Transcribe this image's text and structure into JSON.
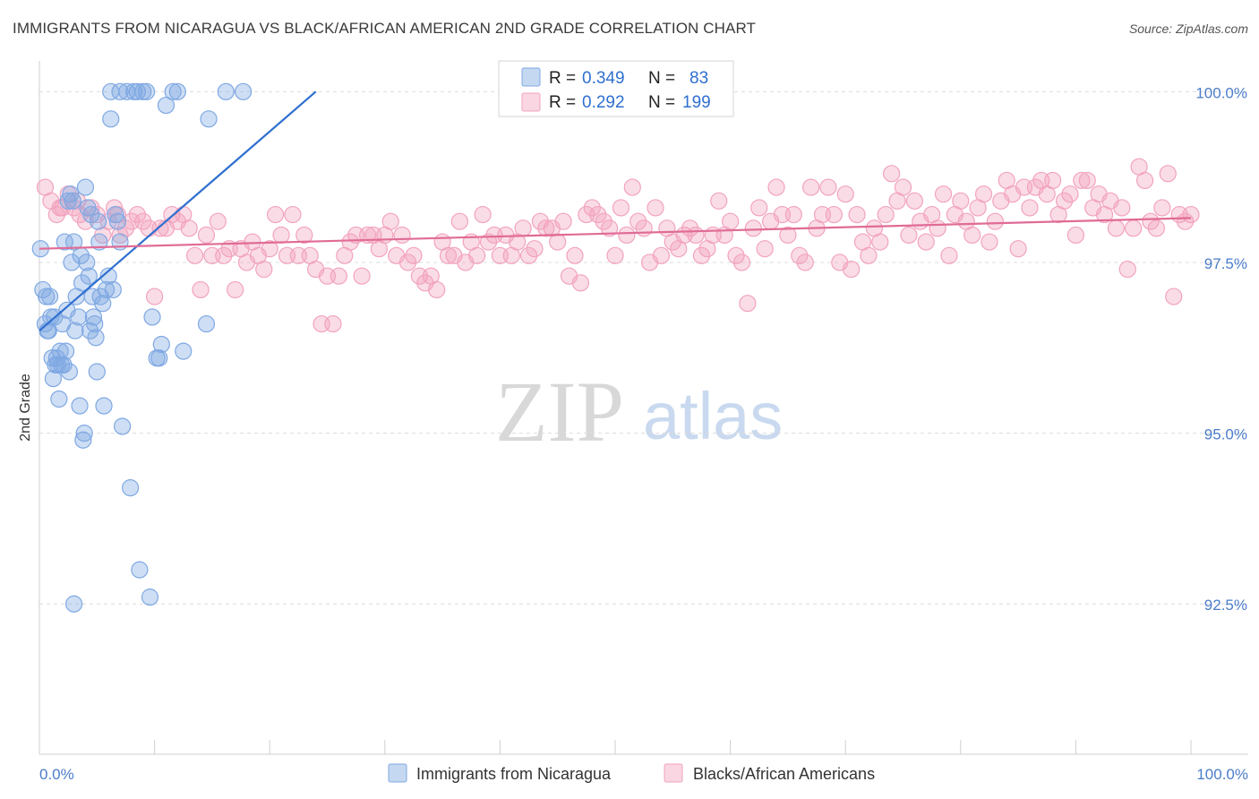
{
  "header": {
    "title": "IMMIGRANTS FROM NICARAGUA VS BLACK/AFRICAN AMERICAN 2ND GRADE CORRELATION CHART",
    "source": "Source: ZipAtlas.com"
  },
  "watermark": {
    "zip": "ZIP",
    "atlas": "atlas"
  },
  "chart_data": {
    "type": "scatter",
    "title": "IMMIGRANTS FROM NICARAGUA VS BLACK/AFRICAN AMERICAN 2ND GRADE CORRELATION CHART",
    "xlabel": "",
    "ylabel": "2nd Grade",
    "xlim": [
      0,
      100
    ],
    "ylim": [
      90.3,
      100.45
    ],
    "x_tick_labels": {
      "left": "0.0%",
      "right": "100.0%"
    },
    "y_ticks": [
      {
        "value": 100.0,
        "label": "100.0%"
      },
      {
        "value": 97.5,
        "label": "97.5%"
      },
      {
        "value": 95.0,
        "label": "95.0%"
      },
      {
        "value": 92.5,
        "label": "92.5%"
      }
    ],
    "legend": {
      "placement": "top-center",
      "rows": [
        {
          "r_label": "R = ",
          "r_value": "0.349",
          "n_label": "N = ",
          "n_value": "83"
        },
        {
          "r_label": "R = ",
          "r_value": "0.292",
          "n_label": "N = ",
          "n_value": "199"
        }
      ]
    },
    "series": [
      {
        "name": "Immigrants from Nicaragua",
        "color": "#7fa8e3",
        "line_color": "#2f6fd0",
        "trend": {
          "x0": 0,
          "y0": 96.5,
          "x1": 24,
          "y1": 100.0
        },
        "points": [
          [
            0.1,
            97.7
          ],
          [
            0.3,
            97.1
          ],
          [
            0.5,
            96.6
          ],
          [
            0.6,
            97.0
          ],
          [
            0.7,
            96.5
          ],
          [
            0.8,
            96.5
          ],
          [
            0.9,
            97.0
          ],
          [
            1.0,
            96.7
          ],
          [
            1.1,
            96.1
          ],
          [
            1.2,
            95.8
          ],
          [
            1.3,
            96.7
          ],
          [
            1.4,
            96.0
          ],
          [
            1.5,
            96.1
          ],
          [
            1.6,
            96.0
          ],
          [
            1.7,
            95.5
          ],
          [
            1.8,
            96.2
          ],
          [
            1.9,
            96.0
          ],
          [
            2.0,
            96.6
          ],
          [
            2.1,
            96.0
          ],
          [
            2.2,
            97.8
          ],
          [
            2.3,
            96.2
          ],
          [
            2.4,
            96.8
          ],
          [
            2.5,
            98.4
          ],
          [
            2.6,
            95.9
          ],
          [
            2.7,
            98.5
          ],
          [
            2.8,
            97.5
          ],
          [
            2.9,
            98.4
          ],
          [
            3.0,
            97.8
          ],
          [
            3.1,
            96.5
          ],
          [
            3.2,
            97.0
          ],
          [
            3.4,
            96.7
          ],
          [
            3.5,
            95.4
          ],
          [
            3.6,
            97.6
          ],
          [
            3.7,
            97.2
          ],
          [
            3.8,
            94.9
          ],
          [
            3.9,
            95.0
          ],
          [
            4.0,
            98.6
          ],
          [
            4.1,
            97.5
          ],
          [
            4.2,
            98.3
          ],
          [
            4.3,
            97.3
          ],
          [
            4.4,
            96.5
          ],
          [
            4.5,
            98.2
          ],
          [
            4.6,
            97.0
          ],
          [
            4.7,
            96.7
          ],
          [
            4.8,
            96.6
          ],
          [
            4.9,
            96.4
          ],
          [
            5.0,
            95.9
          ],
          [
            5.1,
            98.1
          ],
          [
            5.2,
            97.8
          ],
          [
            5.3,
            97.0
          ],
          [
            5.5,
            96.9
          ],
          [
            5.6,
            95.4
          ],
          [
            5.8,
            97.1
          ],
          [
            6.0,
            97.3
          ],
          [
            6.2,
            99.6
          ],
          [
            6.4,
            97.1
          ],
          [
            6.6,
            98.2
          ],
          [
            6.8,
            98.1
          ],
          [
            7.0,
            97.8
          ],
          [
            7.2,
            95.1
          ],
          [
            7.0,
            100.0
          ],
          [
            7.6,
            100.0
          ],
          [
            7.9,
            94.2
          ],
          [
            8.2,
            100.0
          ],
          [
            8.5,
            100.0
          ],
          [
            8.7,
            93.0
          ],
          [
            9.0,
            100.0
          ],
          [
            9.3,
            100.0
          ],
          [
            9.6,
            92.6
          ],
          [
            9.8,
            96.7
          ],
          [
            10.2,
            96.1
          ],
          [
            10.4,
            96.1
          ],
          [
            10.6,
            96.3
          ],
          [
            11.0,
            99.8
          ],
          [
            11.6,
            100.0
          ],
          [
            12.0,
            100.0
          ],
          [
            12.5,
            96.2
          ],
          [
            14.7,
            99.6
          ],
          [
            14.5,
            96.6
          ],
          [
            16.2,
            100.0
          ],
          [
            17.7,
            100.0
          ],
          [
            3.0,
            92.5
          ],
          [
            6.2,
            100.0
          ]
        ]
      },
      {
        "name": "Blacks/African Americans",
        "color": "#f2a3be",
        "line_color": "#e06b96",
        "trend": {
          "x0": 0,
          "y0": 97.7,
          "x1": 100,
          "y1": 98.15
        },
        "points": [
          [
            0.5,
            98.6
          ],
          [
            1.0,
            98.4
          ],
          [
            1.5,
            98.2
          ],
          [
            2.0,
            98.3
          ],
          [
            2.5,
            98.5
          ],
          [
            3.0,
            98.3
          ],
          [
            3.5,
            98.2
          ],
          [
            4.0,
            98.1
          ],
          [
            4.5,
            98.3
          ],
          [
            5.0,
            98.2
          ],
          [
            5.5,
            97.9
          ],
          [
            6.0,
            98.1
          ],
          [
            6.5,
            98.3
          ],
          [
            7.0,
            97.9
          ],
          [
            7.5,
            98.0
          ],
          [
            8.0,
            98.1
          ],
          [
            8.5,
            98.2
          ],
          [
            9.0,
            98.1
          ],
          [
            9.5,
            98.0
          ],
          [
            10.0,
            97.0
          ],
          [
            10.5,
            98.0
          ],
          [
            11.0,
            98.0
          ],
          [
            11.5,
            98.2
          ],
          [
            12.0,
            98.1
          ],
          [
            12.5,
            98.2
          ],
          [
            13.0,
            98.0
          ],
          [
            13.5,
            97.6
          ],
          [
            14.0,
            97.1
          ],
          [
            14.5,
            97.9
          ],
          [
            15.0,
            97.6
          ],
          [
            15.5,
            98.1
          ],
          [
            16.0,
            97.6
          ],
          [
            16.5,
            97.7
          ],
          [
            17.0,
            97.1
          ],
          [
            17.5,
            97.7
          ],
          [
            18.0,
            97.5
          ],
          [
            18.5,
            97.8
          ],
          [
            19.0,
            97.6
          ],
          [
            19.5,
            97.4
          ],
          [
            20.0,
            97.7
          ],
          [
            20.5,
            98.2
          ],
          [
            21.0,
            97.9
          ],
          [
            21.5,
            97.6
          ],
          [
            22.0,
            98.2
          ],
          [
            22.5,
            97.6
          ],
          [
            23.0,
            97.9
          ],
          [
            23.5,
            97.6
          ],
          [
            24.0,
            97.4
          ],
          [
            24.5,
            96.6
          ],
          [
            25.0,
            97.3
          ],
          [
            25.5,
            96.6
          ],
          [
            26.0,
            97.3
          ],
          [
            26.5,
            97.6
          ],
          [
            27.0,
            97.8
          ],
          [
            27.5,
            97.9
          ],
          [
            28.0,
            97.3
          ],
          [
            28.5,
            97.9
          ],
          [
            29.0,
            97.9
          ],
          [
            29.5,
            97.7
          ],
          [
            30.0,
            97.9
          ],
          [
            30.5,
            98.1
          ],
          [
            31.0,
            97.6
          ],
          [
            31.5,
            97.9
          ],
          [
            32.0,
            97.5
          ],
          [
            32.5,
            97.6
          ],
          [
            33.0,
            97.3
          ],
          [
            33.5,
            97.2
          ],
          [
            34.0,
            97.3
          ],
          [
            34.5,
            97.1
          ],
          [
            35.0,
            97.8
          ],
          [
            35.5,
            97.6
          ],
          [
            36.0,
            97.6
          ],
          [
            36.5,
            98.1
          ],
          [
            37.0,
            97.5
          ],
          [
            37.5,
            97.8
          ],
          [
            38.0,
            97.6
          ],
          [
            38.5,
            98.2
          ],
          [
            39.0,
            97.8
          ],
          [
            39.5,
            97.9
          ],
          [
            40.0,
            97.6
          ],
          [
            40.5,
            97.9
          ],
          [
            41.0,
            97.6
          ],
          [
            41.5,
            97.8
          ],
          [
            42.0,
            98.0
          ],
          [
            42.5,
            97.6
          ],
          [
            43.0,
            97.7
          ],
          [
            43.5,
            98.1
          ],
          [
            44.0,
            98.0
          ],
          [
            44.5,
            98.0
          ],
          [
            45.0,
            97.8
          ],
          [
            45.5,
            98.1
          ],
          [
            46.0,
            97.3
          ],
          [
            46.5,
            97.6
          ],
          [
            47.0,
            97.2
          ],
          [
            47.5,
            98.2
          ],
          [
            48.0,
            98.3
          ],
          [
            48.5,
            98.2
          ],
          [
            49.0,
            98.1
          ],
          [
            49.5,
            98.0
          ],
          [
            50.0,
            97.6
          ],
          [
            50.5,
            98.3
          ],
          [
            51.0,
            97.9
          ],
          [
            51.5,
            98.6
          ],
          [
            52.0,
            98.1
          ],
          [
            52.5,
            98.0
          ],
          [
            53.0,
            97.5
          ],
          [
            53.5,
            98.3
          ],
          [
            54.0,
            97.6
          ],
          [
            54.5,
            98.0
          ],
          [
            55.0,
            97.8
          ],
          [
            55.5,
            97.7
          ],
          [
            56.0,
            97.9
          ],
          [
            56.5,
            98.0
          ],
          [
            57.0,
            97.9
          ],
          [
            57.5,
            97.6
          ],
          [
            58.0,
            97.7
          ],
          [
            58.5,
            97.9
          ],
          [
            59.0,
            98.4
          ],
          [
            59.5,
            97.9
          ],
          [
            60.0,
            98.1
          ],
          [
            60.5,
            97.6
          ],
          [
            61.0,
            97.5
          ],
          [
            61.5,
            96.9
          ],
          [
            62.0,
            98.0
          ],
          [
            62.5,
            98.3
          ],
          [
            63.0,
            97.7
          ],
          [
            63.5,
            98.1
          ],
          [
            64.0,
            98.6
          ],
          [
            64.5,
            98.2
          ],
          [
            65.0,
            97.9
          ],
          [
            65.5,
            98.2
          ],
          [
            66.0,
            97.6
          ],
          [
            66.5,
            97.5
          ],
          [
            67.0,
            98.6
          ],
          [
            67.5,
            98.0
          ],
          [
            68.0,
            98.2
          ],
          [
            68.5,
            98.6
          ],
          [
            69.0,
            98.2
          ],
          [
            69.5,
            97.5
          ],
          [
            70.0,
            98.5
          ],
          [
            70.5,
            97.4
          ],
          [
            71.0,
            98.2
          ],
          [
            71.5,
            97.8
          ],
          [
            72.0,
            97.6
          ],
          [
            72.5,
            98.0
          ],
          [
            73.0,
            97.8
          ],
          [
            73.5,
            98.2
          ],
          [
            74.0,
            98.8
          ],
          [
            74.5,
            98.4
          ],
          [
            75.0,
            98.6
          ],
          [
            75.5,
            97.9
          ],
          [
            76.0,
            98.4
          ],
          [
            76.5,
            98.1
          ],
          [
            77.0,
            97.8
          ],
          [
            77.5,
            98.2
          ],
          [
            78.0,
            98.0
          ],
          [
            78.5,
            98.5
          ],
          [
            79.0,
            97.6
          ],
          [
            79.5,
            98.2
          ],
          [
            80.0,
            98.4
          ],
          [
            80.5,
            98.1
          ],
          [
            81.0,
            97.9
          ],
          [
            81.5,
            98.3
          ],
          [
            82.0,
            98.5
          ],
          [
            82.5,
            97.8
          ],
          [
            83.0,
            98.1
          ],
          [
            83.5,
            98.4
          ],
          [
            84.0,
            98.7
          ],
          [
            84.5,
            98.5
          ],
          [
            85.0,
            97.7
          ],
          [
            85.5,
            98.6
          ],
          [
            86.0,
            98.3
          ],
          [
            86.5,
            98.6
          ],
          [
            87.0,
            98.7
          ],
          [
            87.5,
            98.5
          ],
          [
            88.0,
            98.7
          ],
          [
            88.5,
            98.2
          ],
          [
            89.0,
            98.4
          ],
          [
            89.5,
            98.5
          ],
          [
            90.0,
            97.9
          ],
          [
            90.5,
            98.7
          ],
          [
            91.0,
            98.7
          ],
          [
            91.5,
            98.3
          ],
          [
            92.0,
            98.5
          ],
          [
            92.5,
            98.2
          ],
          [
            93.0,
            98.4
          ],
          [
            93.5,
            98.0
          ],
          [
            94.0,
            98.3
          ],
          [
            94.5,
            97.4
          ],
          [
            95.0,
            98.0
          ],
          [
            95.5,
            98.9
          ],
          [
            96.0,
            98.7
          ],
          [
            96.5,
            98.1
          ],
          [
            97.0,
            98.0
          ],
          [
            97.5,
            98.3
          ],
          [
            98.0,
            98.8
          ],
          [
            98.5,
            97.0
          ],
          [
            99.0,
            98.2
          ],
          [
            99.5,
            98.1
          ],
          [
            100.0,
            98.2
          ],
          [
            1.8,
            98.3
          ],
          [
            3.3,
            98.4
          ],
          [
            6.8,
            98.2
          ]
        ]
      }
    ]
  }
}
